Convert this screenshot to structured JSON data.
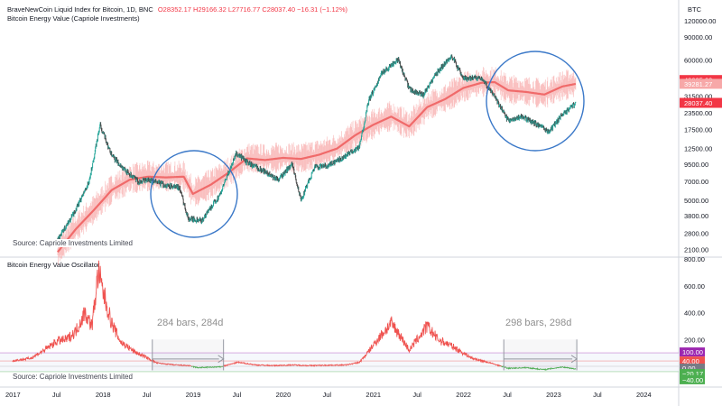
{
  "header": {
    "symbol": "BraveNewCoin Liquid Index for Bitcoin, 1D, BNC",
    "ohlc": "O28352.17 H29166.32 L27716.77 C28037.40 −16.31 (−1.12%)",
    "indicator": "Bitcoin Energy Value (Capriole Investments)",
    "osc_title": "Bitcoin Energy Value Oscillator",
    "source": "Source: Capriole Investments Limited",
    "source2": "Source: Capriole Investments Limited",
    "axis_unit": "BTC"
  },
  "colors": {
    "price_up": "#26a69a",
    "price_down": "#4a4a4a",
    "energy": "#f06a6a",
    "energy_band": "#f7a8a8",
    "osc_pos": "#ef5350",
    "osc_neg": "#4caf50",
    "circle": "#3a78c8",
    "range": "#9598a1"
  },
  "ranges": [
    {
      "label": "284 bars, 284d"
    },
    {
      "label": "298 bars, 298d"
    }
  ],
  "price_badges": [
    {
      "value": "42025.00",
      "color": "#f23645"
    },
    {
      "value": "39281.27",
      "color": "#f7a8a8"
    },
    {
      "value": "28037.40",
      "color": "#f23645"
    }
  ],
  "osc_badges": [
    {
      "value": "100.00",
      "color": "#9c27b0"
    },
    {
      "value": "40.00",
      "color": "#ef5350"
    },
    {
      "value": "0.00",
      "color": "#787b86"
    },
    {
      "value": "−20.17",
      "color": "#4caf50"
    },
    {
      "value": "−40.00",
      "color": "#4caf50"
    }
  ],
  "chart_data": [
    {
      "type": "line",
      "title": "BraveNewCoin Liquid Index for Bitcoin, 1D, BNC",
      "yscale": "log",
      "ylim": [
        1800,
        160000
      ],
      "ytick_labels": [
        "120000.00",
        "90000.00",
        "60000.00",
        "42025.00",
        "31500.00",
        "23500.00",
        "17500.00",
        "12500.00",
        "9500.00",
        "7000.00",
        "5000.00",
        "3800.00",
        "2800.00",
        "2100.00"
      ],
      "ytick_values": [
        120000,
        90000,
        60000,
        42025,
        31500,
        23500,
        17500,
        12500,
        9500,
        7000,
        5000,
        3800,
        2800,
        2100
      ],
      "series": [
        {
          "name": "BraveNewCoin Liquid Index for Bitcoin",
          "x": [
            2017.5,
            2017.7,
            2017.85,
            2017.97,
            2018.1,
            2018.25,
            2018.4,
            2018.5,
            2018.7,
            2018.85,
            2018.95,
            2019.1,
            2019.3,
            2019.48,
            2019.6,
            2019.8,
            2019.95,
            2020.1,
            2020.2,
            2020.35,
            2020.5,
            2020.7,
            2020.85,
            2020.95,
            2021.1,
            2021.28,
            2021.4,
            2021.55,
            2021.7,
            2021.87,
            2022.0,
            2022.2,
            2022.35,
            2022.5,
            2022.65,
            2022.8,
            2022.95,
            2023.1,
            2023.25
          ],
          "y": [
            2500,
            4200,
            7000,
            19000,
            11000,
            8500,
            6900,
            7200,
            6500,
            6300,
            3600,
            3500,
            5500,
            11500,
            9800,
            8300,
            7200,
            9500,
            5000,
            9000,
            9200,
            11000,
            13000,
            29000,
            48000,
            60000,
            36000,
            32000,
            47000,
            65000,
            43000,
            44000,
            31000,
            20500,
            22000,
            19500,
            16800,
            22800,
            28037
          ]
        },
        {
          "name": "Bitcoin Energy Value (Capriole Investments)",
          "x": [
            2017.5,
            2017.7,
            2017.9,
            2018.1,
            2018.3,
            2018.5,
            2018.7,
            2018.9,
            2019.0,
            2019.2,
            2019.4,
            2019.6,
            2019.8,
            2020.0,
            2020.2,
            2020.4,
            2020.6,
            2020.8,
            2021.0,
            2021.2,
            2021.4,
            2021.6,
            2021.8,
            2022.0,
            2022.2,
            2022.35,
            2022.5,
            2022.7,
            2022.9,
            2023.1,
            2023.25
          ],
          "y": [
            2000,
            3000,
            4200,
            6000,
            7200,
            7600,
            7500,
            7600,
            5600,
            6600,
            8200,
            10500,
            10200,
            10600,
            10400,
            11200,
            12500,
            15800,
            19000,
            22000,
            18500,
            26000,
            30000,
            36500,
            40000,
            40500,
            35000,
            34000,
            32500,
            37500,
            39281
          ]
        }
      ]
    },
    {
      "type": "area",
      "title": "Bitcoin Energy Value Oscillator",
      "ylim": [
        -40,
        800
      ],
      "ytick_labels": [
        "800.00",
        "600.00",
        "400.00",
        "200.00"
      ],
      "ytick_values": [
        800,
        600,
        400,
        200
      ],
      "reference_lines": [
        100,
        40,
        0,
        -20.17,
        -40
      ],
      "series": [
        {
          "name": "Bitcoin Energy Value Oscillator",
          "x": [
            2017.0,
            2017.2,
            2017.35,
            2017.5,
            2017.6,
            2017.7,
            2017.8,
            2017.88,
            2017.95,
            2018.0,
            2018.1,
            2018.2,
            2018.35,
            2018.5,
            2018.6,
            2018.8,
            2018.95,
            2019.05,
            2019.3,
            2019.5,
            2019.7,
            2019.9,
            2020.1,
            2020.3,
            2020.5,
            2020.7,
            2020.85,
            2020.95,
            2021.05,
            2021.2,
            2021.28,
            2021.4,
            2021.5,
            2021.6,
            2021.72,
            2021.85,
            2022.0,
            2022.1,
            2022.3,
            2022.5,
            2022.7,
            2022.9,
            2023.1,
            2023.25
          ],
          "y": [
            40,
            60,
            120,
            190,
            200,
            260,
            400,
            300,
            700,
            560,
            320,
            180,
            110,
            60,
            25,
            10,
            5,
            -10,
            -5,
            30,
            10,
            5,
            10,
            5,
            8,
            10,
            30,
            110,
            200,
            320,
            250,
            120,
            210,
            300,
            200,
            160,
            100,
            60,
            25,
            -15,
            -10,
            -25,
            -5,
            -20
          ]
        }
      ]
    },
    {
      "type": "table",
      "title": "x-axis",
      "xtick_labels": [
        "2017",
        "Jul",
        "2018",
        "Jul",
        "2019",
        "Jul",
        "2020",
        "Jul",
        "2021",
        "Jul",
        "2022",
        "Jul",
        "2023",
        "Jul",
        "2024"
      ],
      "xtick_values": [
        2017.0,
        2017.5,
        2018.0,
        2018.5,
        2019.0,
        2019.5,
        2020.0,
        2020.5,
        2021.0,
        2021.5,
        2022.0,
        2022.5,
        2023.0,
        2023.5,
        2024.0
      ]
    }
  ]
}
